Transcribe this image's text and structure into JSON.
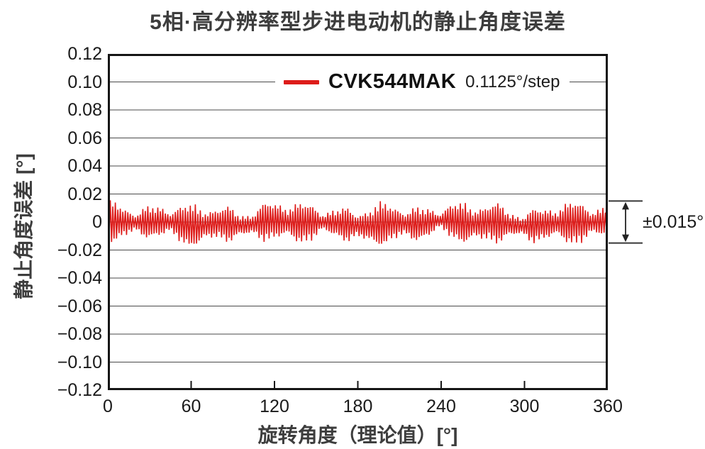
{
  "title": "5相·高分辨率型步进电动机的静止角度误差",
  "colors": {
    "series_red": "#dd1c1a",
    "text_dark": "#3d3d3d",
    "tick_text": "#1a1a1a",
    "axis_border": "#151515",
    "grid_gray": "#4a4a4a",
    "annotation": "#222222",
    "background": "#ffffff"
  },
  "chart_data": {
    "type": "line",
    "title": "5相·高分辨率型步进电动机的静止角度误差",
    "xlabel": "旋转角度（理论值）[°]",
    "ylabel": "静止角度误差 [°]",
    "xlim": [
      0,
      360
    ],
    "ylim": [
      -0.12,
      0.12
    ],
    "x_tick_step": 60,
    "y_tick_step": 0.02,
    "x_ticks": [
      "0",
      "60",
      "120",
      "180",
      "240",
      "300",
      "360"
    ],
    "y_ticks": [
      "0.12",
      "0.10",
      "0.08",
      "0.06",
      "0.04",
      "0.02",
      "0",
      "−0.02",
      "−0.04",
      "−0.06",
      "−0.08",
      "−0.10",
      "−0.12"
    ],
    "grid": {
      "show": true,
      "orientation": "horizontal",
      "step": 0.02
    },
    "minor_x_ticks_inside": [
      60,
      120,
      180,
      240,
      300
    ],
    "legend": {
      "position": "top-center-inside",
      "series_label": "CVK544MAK",
      "series_note": "0.1125°/step",
      "swatch_color": "#dd1c1a"
    },
    "series": [
      {
        "name": "CVK544MAK",
        "color": "#dd1c1a",
        "description": "dense high-frequency static angle error oscillation centered near 0° spanning the full 0–360° rotation, envelope ≈ ±0.015°",
        "peak_amplitude_deg": 0.015,
        "x_range": [
          0,
          360
        ],
        "generator": {
          "points": 400,
          "center_offset": -0.001,
          "drift_components": [
            {
              "freq": 3.2,
              "amp": 0.0012,
              "phase": 0.5
            },
            {
              "freq": 8.9,
              "amp": 0.0008,
              "phase": 1.7
            }
          ],
          "envelope_base": 0.01,
          "envelope_components": [
            {
              "freq": 13.0,
              "amp": 0.003,
              "phase": 0.8
            },
            {
              "freq": 5.3,
              "amp": 0.002,
              "phase": 2.1
            },
            {
              "freq": 29.7,
              "amp": 0.0015,
              "phase": 0.3
            }
          ],
          "tooth_mult_base": 0.62,
          "tooth_mult_amp": 0.38,
          "tooth_phase_step": 2.3999,
          "clip": 0.0155
        }
      }
    ],
    "annotation": {
      "label": "±0.015°",
      "y_top": 0.015,
      "y_bottom": -0.015,
      "style": "double-headed vertical arrow between two horizontal reference lines right of plot"
    }
  }
}
